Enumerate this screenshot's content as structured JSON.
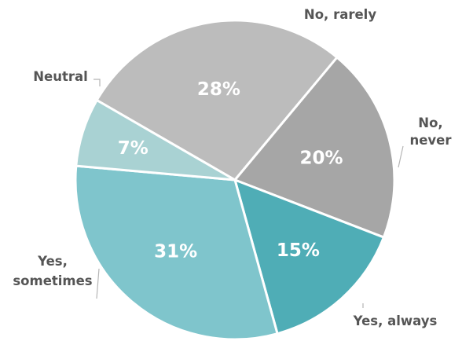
{
  "chart_data": {
    "type": "pie",
    "title": "",
    "categories": [
      "No, rarely",
      "No, never",
      "Yes, always",
      "Yes, sometimes",
      "Neutral"
    ],
    "category_lines": [
      [
        "No, rarely"
      ],
      [
        "No,",
        "never"
      ],
      [
        "Yes, always"
      ],
      [
        "Yes,",
        "sometimes"
      ],
      [
        "Neutral"
      ]
    ],
    "values": [
      28,
      20,
      15,
      31,
      7
    ],
    "value_labels": [
      "28%",
      "20%",
      "15%",
      "31%",
      "7%"
    ],
    "colors": [
      "#bcbcbc",
      "#a6a6a6",
      "#4fadb6",
      "#7fc5cc",
      "#a9d2d3"
    ],
    "legend": "none",
    "data_labels": "inside, white, percent"
  }
}
